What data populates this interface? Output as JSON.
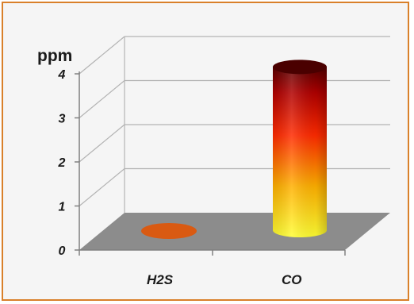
{
  "chart_data": {
    "type": "bar",
    "style": "3d-cylinder",
    "categories": [
      "H2S",
      "CO"
    ],
    "values": [
      0,
      4.3
    ],
    "ylabel": "ppm",
    "ylim": [
      0,
      4
    ],
    "yticks": [
      "0",
      "1",
      "2",
      "3",
      "4"
    ],
    "grid": true,
    "colors": {
      "floor": "#8c8c8c",
      "gridline": "#b3b3b3",
      "axis": "#808080",
      "frame_border": "#d9802a",
      "background": "#f5f5f5",
      "h2s_marker": "#d95a12",
      "co_gradient": [
        "#ffff33",
        "#ffb000",
        "#ff2a00",
        "#b00000",
        "#5a0000"
      ]
    }
  }
}
